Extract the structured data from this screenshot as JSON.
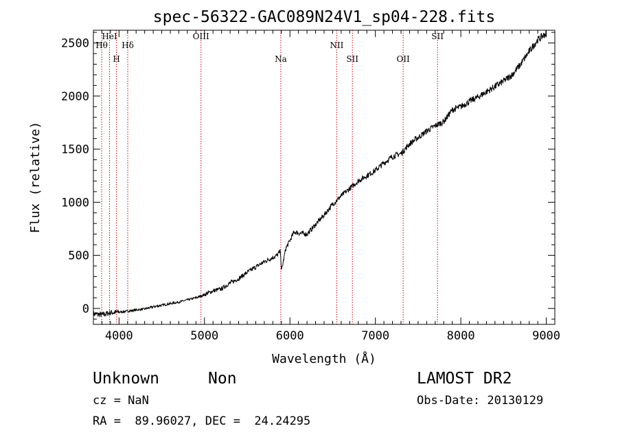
{
  "chart_data": {
    "type": "line",
    "title": "spec-56322-GAC089N24V1_sp04-228.fits",
    "xlabel": "Wavelength (Å)",
    "ylabel": "Flux (relative)",
    "xlim": [
      3700,
      9100
    ],
    "ylim": [
      -150,
      2620
    ],
    "xticks": [
      4000,
      5000,
      6000,
      7000,
      8000,
      9000
    ],
    "yticks": [
      0,
      500,
      1000,
      1500,
      2000,
      2500
    ],
    "grid": false,
    "line_color": "#000000",
    "marker_line_color": "#cc0000",
    "lines": [
      {
        "name": "Hθ",
        "wavelength": 3797
      },
      {
        "name": "HeI",
        "wavelength": 3889
      },
      {
        "name": "H",
        "wavelength": 3970
      },
      {
        "name": "Hδ",
        "wavelength": 4102
      },
      {
        "name": "OIII",
        "wavelength": 4959
      },
      {
        "name": "Na",
        "wavelength": 5893
      },
      {
        "name": "NII",
        "wavelength": 6548
      },
      {
        "name": "SII",
        "wavelength": 6731
      },
      {
        "name": "OII",
        "wavelength": 7325
      },
      {
        "name": "SII",
        "wavelength": 7727
      }
    ],
    "spectrum": {
      "x": [
        3700,
        3800,
        3900,
        4000,
        4100,
        4200,
        4300,
        4400,
        4500,
        4600,
        4700,
        4800,
        4900,
        5000,
        5100,
        5200,
        5300,
        5400,
        5500,
        5600,
        5700,
        5800,
        5850,
        5890,
        5900,
        5950,
        6000,
        6050,
        6100,
        6200,
        6300,
        6400,
        6500,
        6600,
        6700,
        6800,
        6900,
        7000,
        7100,
        7200,
        7300,
        7400,
        7500,
        7600,
        7700,
        7800,
        7900,
        8000,
        8100,
        8200,
        8300,
        8400,
        8500,
        8600,
        8700,
        8800,
        8900,
        9000
      ],
      "y": [
        -50,
        -60,
        -40,
        -35,
        -25,
        -15,
        -5,
        15,
        30,
        45,
        60,
        80,
        100,
        130,
        165,
        185,
        240,
        280,
        340,
        390,
        440,
        480,
        500,
        540,
        350,
        560,
        640,
        720,
        710,
        700,
        790,
        880,
        980,
        1060,
        1130,
        1200,
        1250,
        1300,
        1370,
        1430,
        1460,
        1550,
        1610,
        1670,
        1720,
        1760,
        1870,
        1900,
        1950,
        1990,
        2040,
        2090,
        2140,
        2200,
        2300,
        2420,
        2530,
        2590
      ]
    }
  },
  "footer": {
    "class_label": "Unknown",
    "subclass_label": "Non",
    "survey": "LAMOST DR2",
    "cz": "cz = NaN",
    "obs_date": "Obs-Date: 20130129",
    "coords": "RA =  89.96027, DEC =  24.24295"
  }
}
